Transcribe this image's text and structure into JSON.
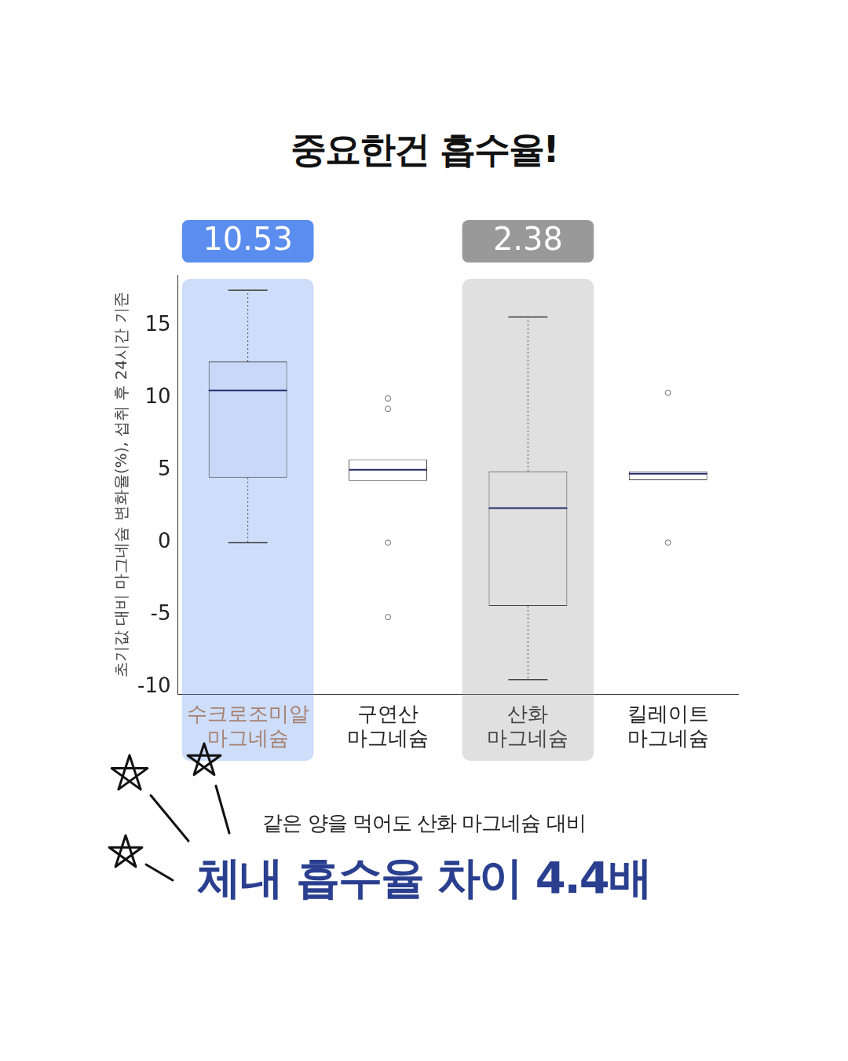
{
  "chart_data": {
    "type": "boxplot",
    "title": "중요한건 흡수율!",
    "y_label": "초기값 대비 마그네슘 변화율(%), 섭취 후 24시간 기준",
    "categories": [
      "수크로조미알 마그네슘",
      "구연산 마그네슘",
      "산화 마그네슘",
      "킬레이트 마그네슘"
    ],
    "boxes": [
      {
        "min": 0,
        "q1": 4.49,
        "median": 10.53,
        "q3": 12.52,
        "max": 17.45,
        "outliers": []
      },
      {
        "min": 4.27,
        "q1": 4.27,
        "median": 5.04,
        "q3": 5.76,
        "max": 5.76,
        "outliers": [
          9.97,
          9.25,
          0,
          -5.15
        ]
      },
      {
        "min": -9.47,
        "q1": -4.38,
        "median": 2.38,
        "q3": 4.93,
        "max": 15.6,
        "outliers": []
      },
      {
        "min": 4.32,
        "q1": 4.32,
        "median": 4.76,
        "q3": 4.93,
        "max": 4.93,
        "outliers": [
          10.36,
          0
        ]
      }
    ],
    "colors": [
      "#c9d7f8",
      "#ffffff",
      "#e0e0e0",
      "#ffffff"
    ],
    "color": "#444444",
    "ylim": [
      -10.5,
      18.5
    ],
    "yticks": [
      -10,
      -5,
      0,
      5,
      10,
      15
    ],
    "grid": false,
    "highlights": [
      {
        "category": "수크로조미알 마그네슘",
        "value": 10.53,
        "color": "#5b8def"
      },
      {
        "category": "산화 마그네슘",
        "value": 2.38,
        "color": "#999999"
      }
    ],
    "annotations": [
      "같은 양을 먹어도 산화 마그네슘 대비",
      "체내 흡수율 차이 4.4배"
    ]
  }
}
